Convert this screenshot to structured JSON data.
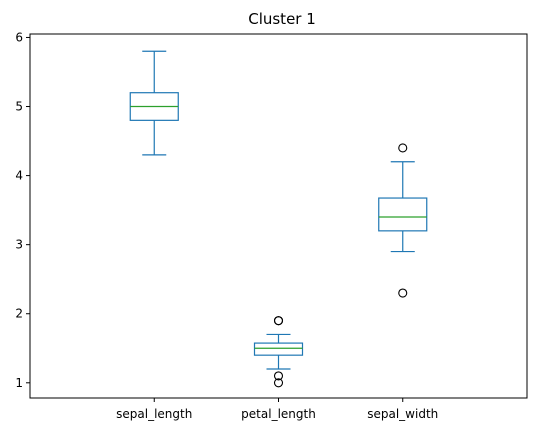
{
  "chart_data": {
    "type": "box",
    "title": "Cluster 1",
    "xlabel": "",
    "ylabel": "",
    "categories": [
      "sepal_length",
      "petal_length",
      "sepal_width"
    ],
    "ylim": [
      0.78,
      6.05
    ],
    "yticks": [
      1,
      2,
      3,
      4,
      5,
      6
    ],
    "grid": false,
    "legend": "none",
    "colors": {
      "box": "#1f77b4",
      "median": "#2ca02c",
      "flier": "#000000",
      "axes": "#000000"
    },
    "boxes": [
      {
        "name": "sepal_length",
        "whisker_low": 4.3,
        "q1": 4.8,
        "median": 5.0,
        "q3": 5.2,
        "whisker_high": 5.8,
        "fliers": []
      },
      {
        "name": "petal_length",
        "whisker_low": 1.2,
        "q1": 1.4,
        "median": 1.5,
        "q3": 1.575,
        "whisker_high": 1.7,
        "fliers": [
          1.0,
          1.1,
          1.9,
          1.9
        ]
      },
      {
        "name": "sepal_width",
        "whisker_low": 2.9,
        "q1": 3.2,
        "median": 3.4,
        "q3": 3.675,
        "whisker_high": 4.2,
        "fliers": [
          2.3,
          4.4
        ]
      }
    ]
  }
}
